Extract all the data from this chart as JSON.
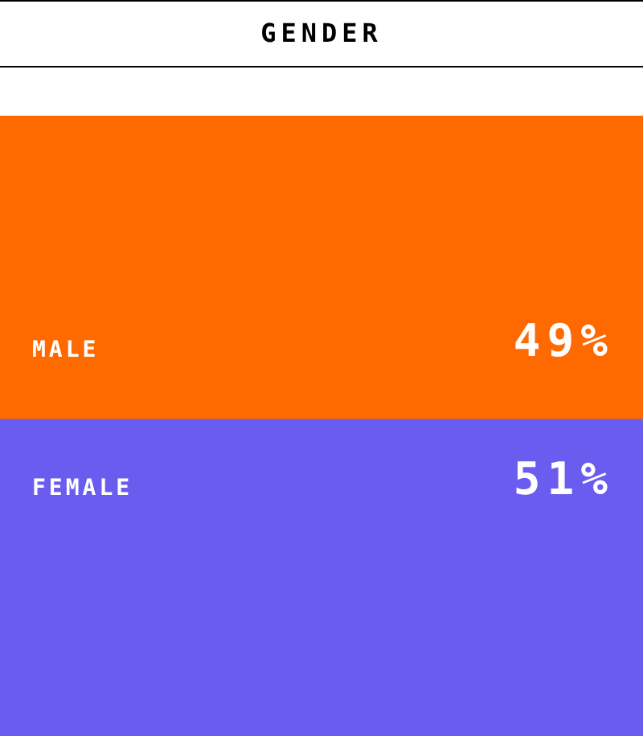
{
  "chart_data": {
    "type": "bar",
    "title": "GENDER",
    "categories": [
      null
    ],
    "stacked": true,
    "ylim": [
      0,
      100
    ],
    "tick_labels": false,
    "legend": false,
    "series": [
      {
        "name": "FEMALE",
        "color": "#6b5cf0",
        "values": [
          51
        ],
        "value_labels": [
          "51%"
        ]
      },
      {
        "name": "MALE",
        "color": "#ff6a00",
        "values": [
          49
        ],
        "value_labels": [
          "49%"
        ]
      }
    ]
  }
}
